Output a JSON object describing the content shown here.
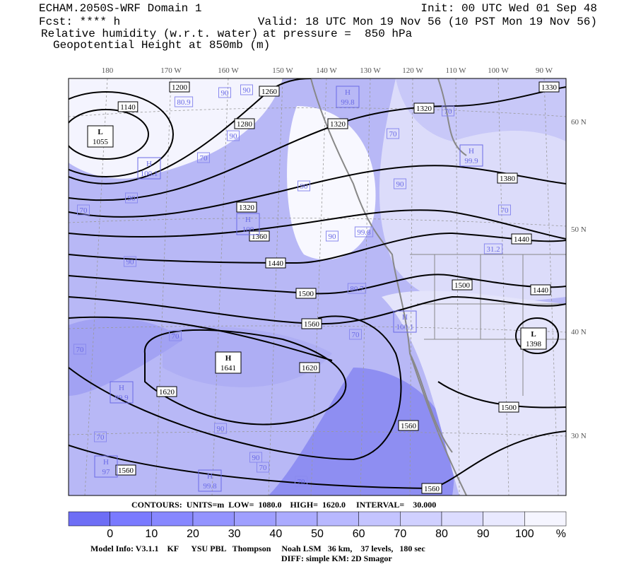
{
  "header": {
    "title": "ECHAM.2050S-WRF Domain 1",
    "fcst": "Fcst: **** h",
    "init": "Init: 00 UTC Wed 01 Sep 48",
    "valid": "Valid: 18 UTC Mon 19 Nov 56 (10 PST Mon 19 Nov 56)",
    "field1": "Relative humidity (w.r.t. water)",
    "pressure": "at pressure =  850 hPa",
    "field2": "Geopotential Height at 850mb (m)"
  },
  "map": {
    "lon_labels": [
      "180",
      "170 W",
      "160 W",
      "150 W",
      "140 W",
      "130 W",
      "120 W",
      "110 W",
      "100 W",
      "90 W"
    ],
    "lat_labels": [
      "60 N",
      "50 N",
      "40 N",
      "30 N"
    ],
    "height_labels": [
      "1200",
      "1260",
      "1320",
      "1320",
      "1140",
      "1280",
      "1380",
      "1330",
      "1320",
      "1360",
      "1440",
      "1440",
      "1500",
      "1500",
      "1440",
      "1560",
      "1620",
      "1620",
      "1560",
      "1500",
      "1560",
      "1560"
    ],
    "centers": [
      {
        "type": "L",
        "value": "1055"
      },
      {
        "type": "H",
        "value": "1641"
      },
      {
        "type": "L",
        "value": "1398"
      }
    ],
    "rh_centers": [
      {
        "type": "H",
        "value": "99.8"
      },
      {
        "type": "H",
        "value": "99.9"
      },
      {
        "type": "H",
        "value": "100.1"
      },
      {
        "type": "H",
        "value": "100.1"
      },
      {
        "type": "H",
        "value": "99.9"
      },
      {
        "type": "H",
        "value": "97"
      },
      {
        "type": "H",
        "value": "99.8"
      },
      {
        "type": "H",
        "value": "100"
      }
    ],
    "rh_labels": [
      "90",
      "90",
      "80.9",
      "90",
      "70",
      "90",
      "90",
      "70",
      "70",
      "90",
      "70",
      "90",
      "70",
      "31.2",
      "90",
      "99.8",
      "70",
      "70",
      "70",
      "70",
      "90",
      "90",
      "70",
      "70",
      "80.7"
    ]
  },
  "footer": {
    "contours": "CONTOURS:  UNITS=m  LOW=  1080.0    HIGH=  1620.0     INTERVAL=    30.000",
    "colorbar": {
      "labels": [
        "0",
        "10",
        "20",
        "30",
        "40",
        "50",
        "60",
        "70",
        "80",
        "90",
        "100"
      ],
      "unit": "%"
    },
    "model": "Model Info: V3.1.1    KF      YSU PBL   Thompson     Noah LSM   36 km,    37 levels,   180 sec",
    "diff": "DIFF: simple KM: 2D Smagor"
  }
}
